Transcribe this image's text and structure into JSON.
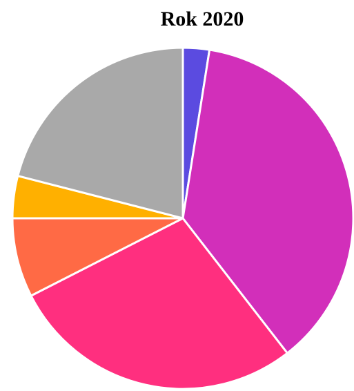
{
  "chart_data": {
    "type": "pie",
    "title": "Rok 2020",
    "values": [
      2.5,
      37,
      28,
      7.5,
      4,
      21
    ],
    "colors": [
      "#5b4be0",
      "#d22fba",
      "#ff2f7f",
      "#ff6a45",
      "#ffb000",
      "#a9a9a9"
    ]
  }
}
